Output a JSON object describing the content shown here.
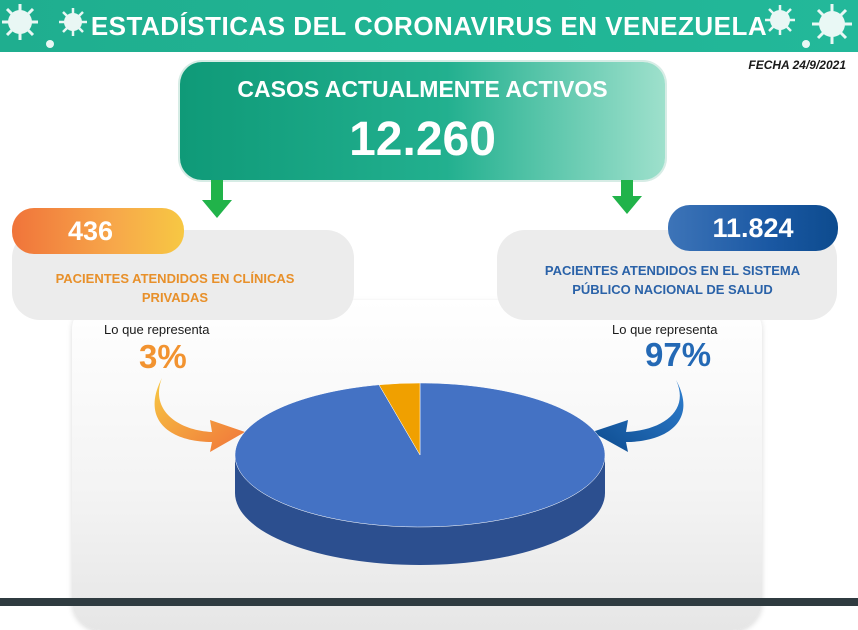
{
  "header": {
    "title": "ESTADÍSTICAS DEL CORONAVIRUS EN VENEZUELA"
  },
  "date": "FECHA 24/9/2021",
  "active": {
    "label": "CASOS ACTUALMENTE ACTIVOS",
    "value": "12.260"
  },
  "private": {
    "count": "436",
    "label_line1": "PACIENTES ATENDIDOS EN CLÍNICAS",
    "label_line2": "PRIVADAS",
    "represents": "Lo que representa",
    "percent": "3%"
  },
  "public": {
    "count": "11.824",
    "label_line1": "PACIENTES ATENDIDOS EN EL SISTEMA",
    "label_line2": "PÚBLICO NACIONAL DE SALUD",
    "represents": "Lo que representa",
    "percent": "97%"
  },
  "colors": {
    "header": "#20b493",
    "private": "#f29330",
    "public": "#4472c4",
    "slice_private": "#f0a000"
  },
  "icons": [
    "virus-icon"
  ],
  "chart_data": {
    "type": "pie",
    "categories": [
      "Clínicas privadas",
      "Sistema público nacional de salud"
    ],
    "values": [
      436,
      11824
    ],
    "percent": [
      3,
      97
    ]
  }
}
